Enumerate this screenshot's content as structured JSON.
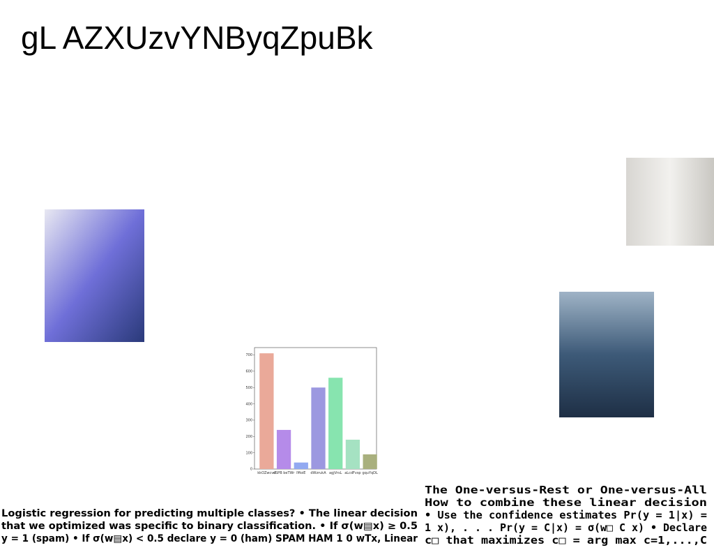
{
  "header": {
    "title": "gL AZXUzvYNByqZpuBk"
  },
  "left_text": [
    "Logistic regression for predicting multiple classes? • The linear decision",
    "that we optimized was specific to binary classification. • If σ(w▤x) ≥ 0.5",
    "y = 1 (spam) • If σ(w▤x) < 0.5 declare y = 0 (ham) SPAM HAM 1 0 wTx, Linear"
  ],
  "right_text": [
    "The One-versus-Rest or One-versus-All",
    "How to combine these linear decision",
    "• Use the confidence estimates Pr(y = 1|x) =",
    "1 x), . . . Pr(y = C|x) = σ(w□ C x) • Declare",
    "c□ that maximizes c□ = arg max c=1,...,C"
  ],
  "chart_data": {
    "type": "bar",
    "categories": [
      "kkOZwcvd",
      "dSPB beTWr",
      "lMoiE",
      "dWzrukA",
      "agjVrsL",
      "aLcdFvsp",
      "gquYqDL"
    ],
    "values": [
      710,
      240,
      40,
      500,
      560,
      180,
      90
    ],
    "colors": [
      "#eaa999",
      "#b58be9",
      "#92a9f1",
      "#9c98e0",
      "#87e4af",
      "#a5e2c2",
      "#a9b07e"
    ],
    "ylim": [
      0,
      745
    ],
    "yticks": [
      0,
      100,
      200,
      300,
      400,
      500,
      600,
      700
    ]
  }
}
